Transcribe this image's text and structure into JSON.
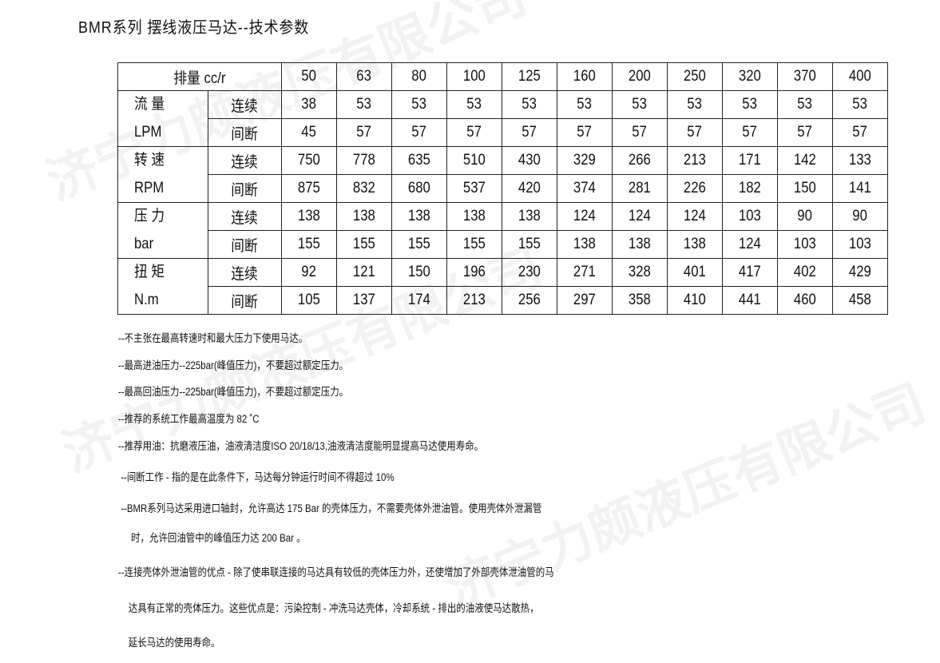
{
  "title": "BMR系列 摆线液压马达--技术参数",
  "watermark": "济宁力颇液压有限公司",
  "table": {
    "header_label": "排量 cc/r",
    "displacements": [
      "50",
      "63",
      "80",
      "100",
      "125",
      "160",
      "200",
      "250",
      "320",
      "370",
      "400"
    ],
    "groups": [
      {
        "name": "流 量",
        "unit": "LPM",
        "rows": [
          {
            "label": "连续",
            "values": [
              "38",
              "53",
              "53",
              "53",
              "53",
              "53",
              "53",
              "53",
              "53",
              "53",
              "53"
            ]
          },
          {
            "label": "间断",
            "values": [
              "45",
              "57",
              "57",
              "57",
              "57",
              "57",
              "57",
              "57",
              "57",
              "57",
              "57"
            ]
          }
        ]
      },
      {
        "name": "转 速",
        "unit": "RPM",
        "rows": [
          {
            "label": "连续",
            "values": [
              "750",
              "778",
              "635",
              "510",
              "430",
              "329",
              "266",
              "213",
              "171",
              "142",
              "133"
            ]
          },
          {
            "label": "间断",
            "values": [
              "875",
              "832",
              "680",
              "537",
              "420",
              "374",
              "281",
              "226",
              "182",
              "150",
              "141"
            ]
          }
        ]
      },
      {
        "name": "压 力",
        "unit": "bar",
        "rows": [
          {
            "label": "连续",
            "values": [
              "138",
              "138",
              "138",
              "138",
              "138",
              "124",
              "124",
              "124",
              "103",
              "90",
              "90"
            ]
          },
          {
            "label": "间断",
            "values": [
              "155",
              "155",
              "155",
              "155",
              "155",
              "138",
              "138",
              "138",
              "124",
              "103",
              "103"
            ]
          }
        ]
      },
      {
        "name": "扭 矩",
        "unit": "N.m",
        "rows": [
          {
            "label": "连续",
            "values": [
              "92",
              "121",
              "150",
              "196",
              "230",
              "271",
              "328",
              "401",
              "417",
              "402",
              "429"
            ]
          },
          {
            "label": "间断",
            "values": [
              "105",
              "137",
              "174",
              "213",
              "256",
              "297",
              "358",
              "410",
              "441",
              "460",
              "458"
            ]
          }
        ]
      }
    ]
  },
  "notes": [
    "--不主张在最高转速时和最大压力下使用马达。",
    "--最高进油压力--225bar(峰值压力)，不要超过额定压力。",
    "--最高回油压力--225bar(峰值压力)，不要超过额定压力。",
    "--推荐的系统工作最高温度为 82 ˚C",
    "--推荐用油：抗磨液压油，油液清洁度ISO 20/18/13,油液清洁度能明显提高马达使用寿命。",
    " --间断工作 - 指的是在此条件下，马达每分钟运行时间不得超过 10%",
    " --BMR系列马达采用进口轴封，允许高达 175 Bar 的壳体压力，不需要壳体外泄油管。使用壳体外泄漏管",
    "     时，允许回油管中的峰值压力达 200 Bar 。",
    "--连接壳体外泄油管的优点 - 除了使串联连接的马达具有较低的壳体压力外，还使增加了外部壳体泄油管的马",
    "    达具有正常的壳体压力。这些优点是：污染控制 - 冲洗马达壳体，冷却系统 - 排出的油液使马达散热，",
    "    延长马达的使用寿命。"
  ]
}
